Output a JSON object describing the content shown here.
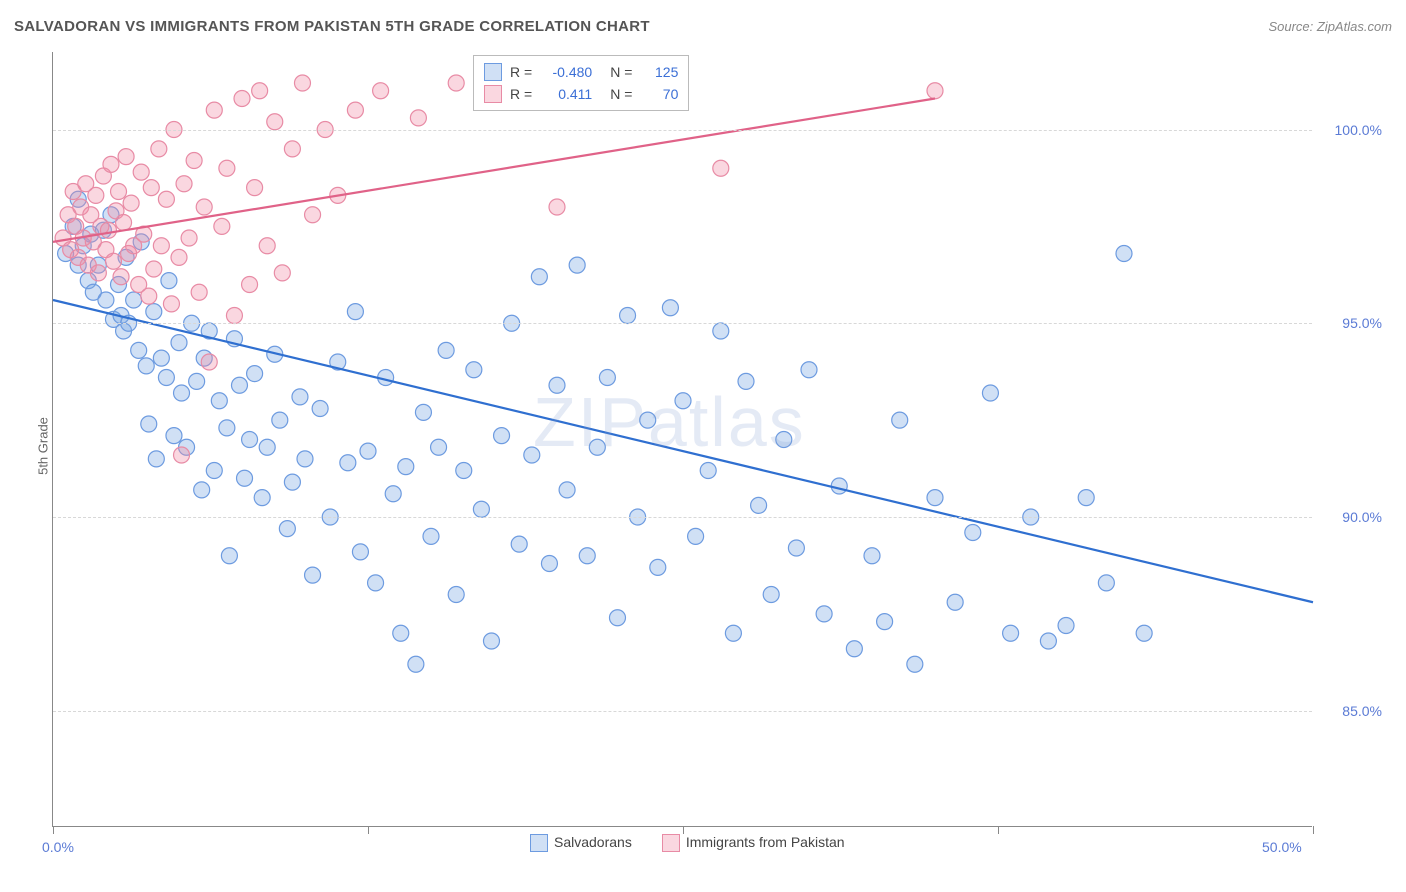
{
  "title": "SALVADORAN VS IMMIGRANTS FROM PAKISTAN 5TH GRADE CORRELATION CHART",
  "source": "Source: ZipAtlas.com",
  "y_axis_label": "5th Grade",
  "watermark": "ZIPatlas",
  "chart": {
    "type": "scatter",
    "xlim": [
      0,
      50
    ],
    "ylim": [
      82,
      102
    ],
    "x_ticks": [
      0,
      12.5,
      25,
      37.5,
      50
    ],
    "x_tick_labels_shown": {
      "0": "0.0%",
      "50": "50.0%"
    },
    "y_ticks": [
      85,
      90,
      95,
      100
    ],
    "y_tick_labels": [
      "85.0%",
      "90.0%",
      "95.0%",
      "100.0%"
    ],
    "background_color": "#ffffff",
    "grid_color": "#d8d8d8",
    "axis_color": "#888888",
    "tick_label_color": "#5b7bd5",
    "marker_radius": 8,
    "marker_stroke_width": 1.2,
    "trend_line_width": 2.2
  },
  "series": [
    {
      "key": "salvadorans",
      "label": "Salvadorans",
      "fill_color": "rgba(120,165,225,0.35)",
      "stroke_color": "#6d9be0",
      "trend_color": "#2f6fd0",
      "R": "-0.480",
      "N": "125",
      "trend": {
        "x1": 0,
        "y1": 95.6,
        "x2": 50,
        "y2": 87.8
      },
      "points": [
        [
          0.5,
          96.8
        ],
        [
          0.8,
          97.5
        ],
        [
          1.0,
          96.5
        ],
        [
          1.0,
          98.2
        ],
        [
          1.2,
          97.0
        ],
        [
          1.4,
          96.1
        ],
        [
          1.5,
          97.3
        ],
        [
          1.6,
          95.8
        ],
        [
          1.8,
          96.5
        ],
        [
          2.0,
          97.4
        ],
        [
          2.1,
          95.6
        ],
        [
          2.3,
          97.8
        ],
        [
          2.4,
          95.1
        ],
        [
          2.6,
          96.0
        ],
        [
          2.7,
          95.2
        ],
        [
          2.8,
          94.8
        ],
        [
          2.9,
          96.7
        ],
        [
          3.0,
          95.0
        ],
        [
          3.2,
          95.6
        ],
        [
          3.4,
          94.3
        ],
        [
          3.5,
          97.1
        ],
        [
          3.7,
          93.9
        ],
        [
          3.8,
          92.4
        ],
        [
          4.0,
          95.3
        ],
        [
          4.1,
          91.5
        ],
        [
          4.3,
          94.1
        ],
        [
          4.5,
          93.6
        ],
        [
          4.6,
          96.1
        ],
        [
          4.8,
          92.1
        ],
        [
          5.0,
          94.5
        ],
        [
          5.1,
          93.2
        ],
        [
          5.3,
          91.8
        ],
        [
          5.5,
          95.0
        ],
        [
          5.7,
          93.5
        ],
        [
          5.9,
          90.7
        ],
        [
          6.0,
          94.1
        ],
        [
          6.2,
          94.8
        ],
        [
          6.4,
          91.2
        ],
        [
          6.6,
          93.0
        ],
        [
          6.9,
          92.3
        ],
        [
          7.0,
          89.0
        ],
        [
          7.2,
          94.6
        ],
        [
          7.4,
          93.4
        ],
        [
          7.6,
          91.0
        ],
        [
          7.8,
          92.0
        ],
        [
          8.0,
          93.7
        ],
        [
          8.3,
          90.5
        ],
        [
          8.5,
          91.8
        ],
        [
          8.8,
          94.2
        ],
        [
          9.0,
          92.5
        ],
        [
          9.3,
          89.7
        ],
        [
          9.5,
          90.9
        ],
        [
          9.8,
          93.1
        ],
        [
          10.0,
          91.5
        ],
        [
          10.3,
          88.5
        ],
        [
          10.6,
          92.8
        ],
        [
          11.0,
          90.0
        ],
        [
          11.3,
          94.0
        ],
        [
          11.7,
          91.4
        ],
        [
          12.0,
          95.3
        ],
        [
          12.2,
          89.1
        ],
        [
          12.5,
          91.7
        ],
        [
          12.8,
          88.3
        ],
        [
          13.2,
          93.6
        ],
        [
          13.5,
          90.6
        ],
        [
          13.8,
          87.0
        ],
        [
          14.0,
          91.3
        ],
        [
          14.4,
          86.2
        ],
        [
          14.7,
          92.7
        ],
        [
          15.0,
          89.5
        ],
        [
          15.3,
          91.8
        ],
        [
          15.6,
          94.3
        ],
        [
          16.0,
          88.0
        ],
        [
          16.3,
          91.2
        ],
        [
          16.7,
          93.8
        ],
        [
          17.0,
          90.2
        ],
        [
          17.4,
          86.8
        ],
        [
          17.8,
          92.1
        ],
        [
          18.2,
          95.0
        ],
        [
          18.5,
          89.3
        ],
        [
          19.0,
          91.6
        ],
        [
          19.3,
          96.2
        ],
        [
          19.7,
          88.8
        ],
        [
          20.0,
          93.4
        ],
        [
          20.4,
          90.7
        ],
        [
          20.8,
          96.5
        ],
        [
          21.2,
          89.0
        ],
        [
          21.6,
          91.8
        ],
        [
          22.0,
          93.6
        ],
        [
          22.4,
          87.4
        ],
        [
          22.8,
          95.2
        ],
        [
          23.2,
          90.0
        ],
        [
          23.6,
          92.5
        ],
        [
          24.0,
          88.7
        ],
        [
          24.5,
          95.4
        ],
        [
          25.0,
          93.0
        ],
        [
          25.5,
          89.5
        ],
        [
          26.0,
          91.2
        ],
        [
          26.5,
          94.8
        ],
        [
          27.0,
          87.0
        ],
        [
          27.5,
          93.5
        ],
        [
          28.0,
          90.3
        ],
        [
          28.5,
          88.0
        ],
        [
          29.0,
          92.0
        ],
        [
          29.5,
          89.2
        ],
        [
          30.0,
          93.8
        ],
        [
          30.6,
          87.5
        ],
        [
          31.2,
          90.8
        ],
        [
          31.8,
          86.6
        ],
        [
          32.5,
          89.0
        ],
        [
          33.0,
          87.3
        ],
        [
          33.6,
          92.5
        ],
        [
          34.2,
          86.2
        ],
        [
          35.0,
          90.5
        ],
        [
          35.8,
          87.8
        ],
        [
          36.5,
          89.6
        ],
        [
          37.2,
          93.2
        ],
        [
          38.0,
          87.0
        ],
        [
          38.8,
          90.0
        ],
        [
          39.5,
          86.8
        ],
        [
          40.2,
          87.2
        ],
        [
          41.0,
          90.5
        ],
        [
          41.8,
          88.3
        ],
        [
          42.5,
          96.8
        ],
        [
          43.3,
          87.0
        ]
      ]
    },
    {
      "key": "pakistan",
      "label": "Immigrants from Pakistan",
      "fill_color": "rgba(240,140,165,0.35)",
      "stroke_color": "#e88ba5",
      "trend_color": "#e06288",
      "R": "0.411",
      "N": "70",
      "trend": {
        "x1": 0,
        "y1": 97.1,
        "x2": 35,
        "y2": 100.8
      },
      "points": [
        [
          0.4,
          97.2
        ],
        [
          0.6,
          97.8
        ],
        [
          0.7,
          96.9
        ],
        [
          0.8,
          98.4
        ],
        [
          0.9,
          97.5
        ],
        [
          1.0,
          96.7
        ],
        [
          1.1,
          98.0
        ],
        [
          1.2,
          97.2
        ],
        [
          1.3,
          98.6
        ],
        [
          1.4,
          96.5
        ],
        [
          1.5,
          97.8
        ],
        [
          1.6,
          97.1
        ],
        [
          1.7,
          98.3
        ],
        [
          1.8,
          96.3
        ],
        [
          1.9,
          97.5
        ],
        [
          2.0,
          98.8
        ],
        [
          2.1,
          96.9
        ],
        [
          2.2,
          97.4
        ],
        [
          2.3,
          99.1
        ],
        [
          2.4,
          96.6
        ],
        [
          2.5,
          97.9
        ],
        [
          2.6,
          98.4
        ],
        [
          2.7,
          96.2
        ],
        [
          2.8,
          97.6
        ],
        [
          2.9,
          99.3
        ],
        [
          3.0,
          96.8
        ],
        [
          3.1,
          98.1
        ],
        [
          3.2,
          97.0
        ],
        [
          3.4,
          96.0
        ],
        [
          3.5,
          98.9
        ],
        [
          3.6,
          97.3
        ],
        [
          3.8,
          95.7
        ],
        [
          3.9,
          98.5
        ],
        [
          4.0,
          96.4
        ],
        [
          4.2,
          99.5
        ],
        [
          4.3,
          97.0
        ],
        [
          4.5,
          98.2
        ],
        [
          4.7,
          95.5
        ],
        [
          4.8,
          100.0
        ],
        [
          5.0,
          96.7
        ],
        [
          5.1,
          91.6
        ],
        [
          5.2,
          98.6
        ],
        [
          5.4,
          97.2
        ],
        [
          5.6,
          99.2
        ],
        [
          5.8,
          95.8
        ],
        [
          6.0,
          98.0
        ],
        [
          6.2,
          94.0
        ],
        [
          6.4,
          100.5
        ],
        [
          6.7,
          97.5
        ],
        [
          6.9,
          99.0
        ],
        [
          7.2,
          95.2
        ],
        [
          7.5,
          100.8
        ],
        [
          7.8,
          96.0
        ],
        [
          8.0,
          98.5
        ],
        [
          8.2,
          101.0
        ],
        [
          8.5,
          97.0
        ],
        [
          8.8,
          100.2
        ],
        [
          9.1,
          96.3
        ],
        [
          9.5,
          99.5
        ],
        [
          9.9,
          101.2
        ],
        [
          10.3,
          97.8
        ],
        [
          10.8,
          100.0
        ],
        [
          11.3,
          98.3
        ],
        [
          12.0,
          100.5
        ],
        [
          13.0,
          101.0
        ],
        [
          14.5,
          100.3
        ],
        [
          16.0,
          101.2
        ],
        [
          20.0,
          98.0
        ],
        [
          26.5,
          99.0
        ],
        [
          35.0,
          101.0
        ]
      ]
    }
  ],
  "stats_legend": {
    "rows": [
      {
        "series_key": "salvadorans",
        "R_label": "R =",
        "N_label": "N ="
      },
      {
        "series_key": "pakistan",
        "R_label": "R =",
        "N_label": "N ="
      }
    ]
  }
}
